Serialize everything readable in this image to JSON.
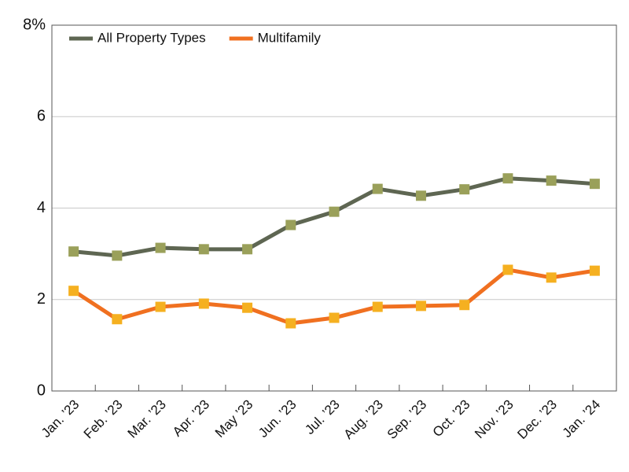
{
  "chart_data": {
    "type": "line",
    "categories": [
      "Jan. ’23",
      "Feb. ’23",
      "Mar. ’23",
      "Apr. ’23",
      "May ’23",
      "Jun. ’23",
      "Jul. ’23",
      "Aug. ’23",
      "Sep. ’23",
      "Oct. ’23",
      "Nov. ’23",
      "Dec. ’23",
      "Jan. ’24"
    ],
    "series": [
      {
        "name": "All Property Types",
        "color": "#5e6652",
        "marker_color": "#9aa05a",
        "values": [
          3.05,
          2.96,
          3.13,
          3.1,
          3.1,
          3.63,
          3.92,
          4.42,
          4.27,
          4.41,
          4.65,
          4.6,
          4.53
        ]
      },
      {
        "name": "Multifamily",
        "color": "#f07020",
        "marker_color": "#f5b020",
        "values": [
          2.19,
          1.57,
          1.84,
          1.91,
          1.82,
          1.48,
          1.6,
          1.84,
          1.86,
          1.88,
          2.65,
          2.48,
          2.63
        ]
      }
    ],
    "ylim": [
      0,
      8
    ],
    "yticks": [
      0,
      2,
      4,
      6,
      {
        "value": 8,
        "label": "8%"
      }
    ],
    "grid": true,
    "legend": "top-left"
  }
}
